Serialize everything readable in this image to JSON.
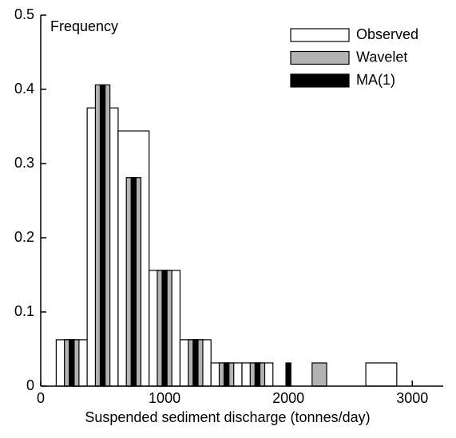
{
  "chart_data": {
    "type": "histogram",
    "y_label": "Frequency",
    "x_label": "Suspended sediment discharge (tonnes/day)",
    "bins": [
      125,
      375,
      625,
      875,
      1125,
      1375,
      1625,
      1875,
      2125,
      2375,
      2625,
      2875
    ],
    "series": [
      {
        "name": "Observed",
        "color": "#ffffff",
        "values": [
          0.0625,
          0.375,
          0.344,
          0.156,
          0.0625,
          0.03125,
          0.03125,
          0,
          0,
          0,
          0.03125
        ]
      },
      {
        "name": "Wavelet",
        "color": "#b3b3b3",
        "values": [
          0.0625,
          0.406,
          0.281,
          0.156,
          0.0625,
          0.03125,
          0.03125,
          0,
          0.03125,
          0,
          0
        ]
      },
      {
        "name": "MA(1)",
        "color": "#000000",
        "values": [
          0.0625,
          0.406,
          0.281,
          0.156,
          0.0625,
          0.03125,
          0.03125,
          0.03125,
          0,
          0,
          0
        ]
      }
    ],
    "xlim": [
      0,
      3250
    ],
    "ylim": [
      0,
      0.5
    ],
    "xticks": [
      0,
      1000,
      2000,
      3000
    ],
    "yticks": [
      0,
      0.1,
      0.2,
      0.3,
      0.4,
      0.5
    ],
    "legend": "upper right"
  }
}
